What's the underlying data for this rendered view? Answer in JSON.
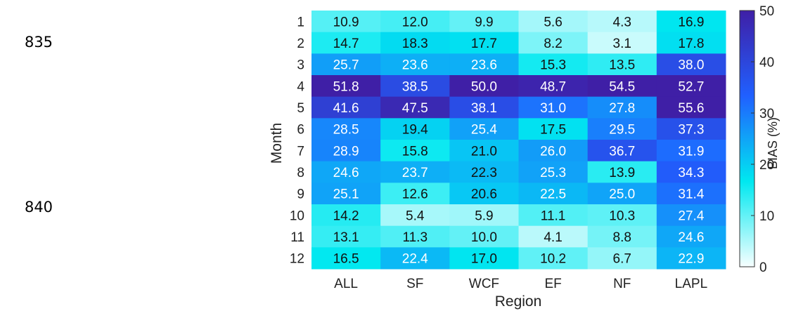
{
  "line_numbers": [
    "835",
    "840"
  ],
  "chart_data": {
    "type": "heatmap",
    "title": "",
    "xlabel": "Region",
    "ylabel": "Month",
    "colorbar_label": "BIAS (%)",
    "colorbar_range": [
      0,
      50
    ],
    "colorbar_ticks": [
      0,
      10,
      20,
      30,
      40,
      50
    ],
    "colormap": [
      "#f7ffff",
      "#00e8f0",
      "#2060ff",
      "#3f1fa6"
    ],
    "x_categories": [
      "ALL",
      "SF",
      "WCF",
      "EF",
      "NF",
      "LAPL"
    ],
    "y_categories": [
      "1",
      "2",
      "3",
      "4",
      "5",
      "6",
      "7",
      "8",
      "9",
      "10",
      "11",
      "12"
    ],
    "values": [
      [
        10.9,
        12.0,
        9.9,
        5.6,
        4.3,
        16.9
      ],
      [
        14.7,
        18.3,
        17.7,
        8.2,
        3.1,
        17.8
      ],
      [
        25.7,
        23.6,
        23.6,
        15.3,
        13.5,
        38.0
      ],
      [
        51.8,
        38.5,
        50.0,
        48.7,
        54.5,
        52.7
      ],
      [
        41.6,
        47.5,
        38.1,
        31.0,
        27.8,
        55.6
      ],
      [
        28.5,
        19.4,
        25.4,
        17.5,
        29.5,
        37.3
      ],
      [
        28.9,
        15.8,
        21.0,
        26.0,
        36.7,
        31.9
      ],
      [
        24.6,
        23.7,
        22.3,
        25.3,
        13.9,
        34.3
      ],
      [
        25.1,
        12.6,
        20.6,
        22.5,
        25.0,
        31.4
      ],
      [
        14.2,
        5.4,
        5.9,
        11.1,
        10.3,
        27.4
      ],
      [
        13.1,
        11.3,
        10.0,
        4.1,
        8.8,
        24.6
      ],
      [
        16.5,
        22.4,
        17.0,
        10.2,
        6.7,
        22.9
      ]
    ],
    "value_labels": [
      [
        "10.9",
        "12.0",
        "9.9",
        "5.6",
        "4.3",
        "16.9"
      ],
      [
        "14.7",
        "18.3",
        "17.7",
        "8.2",
        "3.1",
        "17.8"
      ],
      [
        "25.7",
        "23.6",
        "23.6",
        "15.3",
        "13.5",
        "38.0"
      ],
      [
        "51.8",
        "38.5",
        "50.0",
        "48.7",
        "54.5",
        "52.7"
      ],
      [
        "41.6",
        "47.5",
        "38.1",
        "31.0",
        "27.8",
        "55.6"
      ],
      [
        "28.5",
        "19.4",
        "25.4",
        "17.5",
        "29.5",
        "37.3"
      ],
      [
        "28.9",
        "15.8",
        "21.0",
        "26.0",
        "36.7",
        "31.9"
      ],
      [
        "24.6",
        "23.7",
        "22.3",
        "25.3",
        "13.9",
        "34.3"
      ],
      [
        "25.1",
        "12.6",
        "20.6",
        "22.5",
        "25.0",
        "31.4"
      ],
      [
        "14.2",
        "5.4",
        "5.9",
        "11.1",
        "10.3",
        "27.4"
      ],
      [
        "13.1",
        "11.3",
        "10.0",
        "4.1",
        "8.8",
        "24.6"
      ],
      [
        "16.5",
        "22.4",
        "17.0",
        "10.2",
        "6.7",
        "22.9"
      ]
    ]
  }
}
